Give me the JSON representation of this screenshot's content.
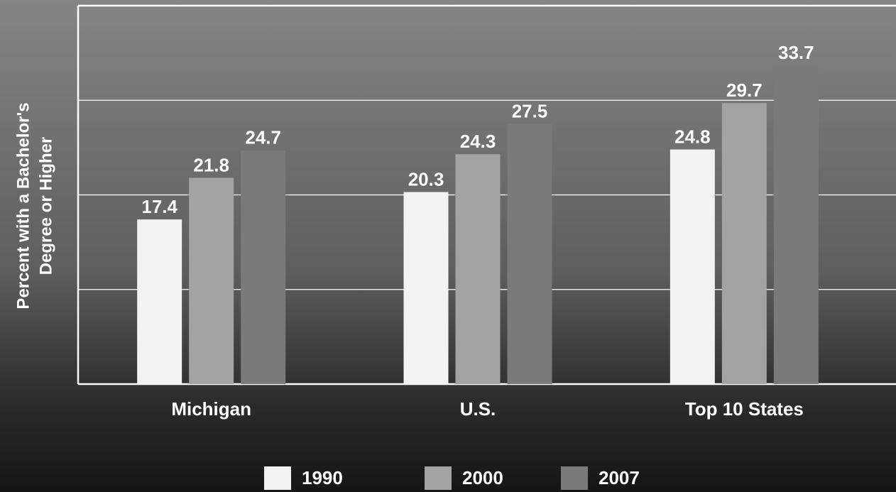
{
  "chart_data": {
    "type": "bar",
    "ylabel": [
      "Percent with a Bachelor's",
      "Degree or Higher"
    ],
    "categories": [
      "Michigan",
      "U.S.",
      "Top 10 States"
    ],
    "series": [
      {
        "name": "1990",
        "color": "#f2f2f2",
        "values": [
          17.4,
          20.3,
          24.8
        ]
      },
      {
        "name": "2000",
        "color": "#a3a3a3",
        "values": [
          21.8,
          24.3,
          29.7
        ]
      },
      {
        "name": "2007",
        "color": "#7a7a7a",
        "values": [
          24.7,
          27.5,
          33.7
        ]
      }
    ],
    "ylim": [
      0,
      40
    ],
    "yticks": [
      0,
      10,
      20,
      30,
      40
    ],
    "grid": true
  }
}
